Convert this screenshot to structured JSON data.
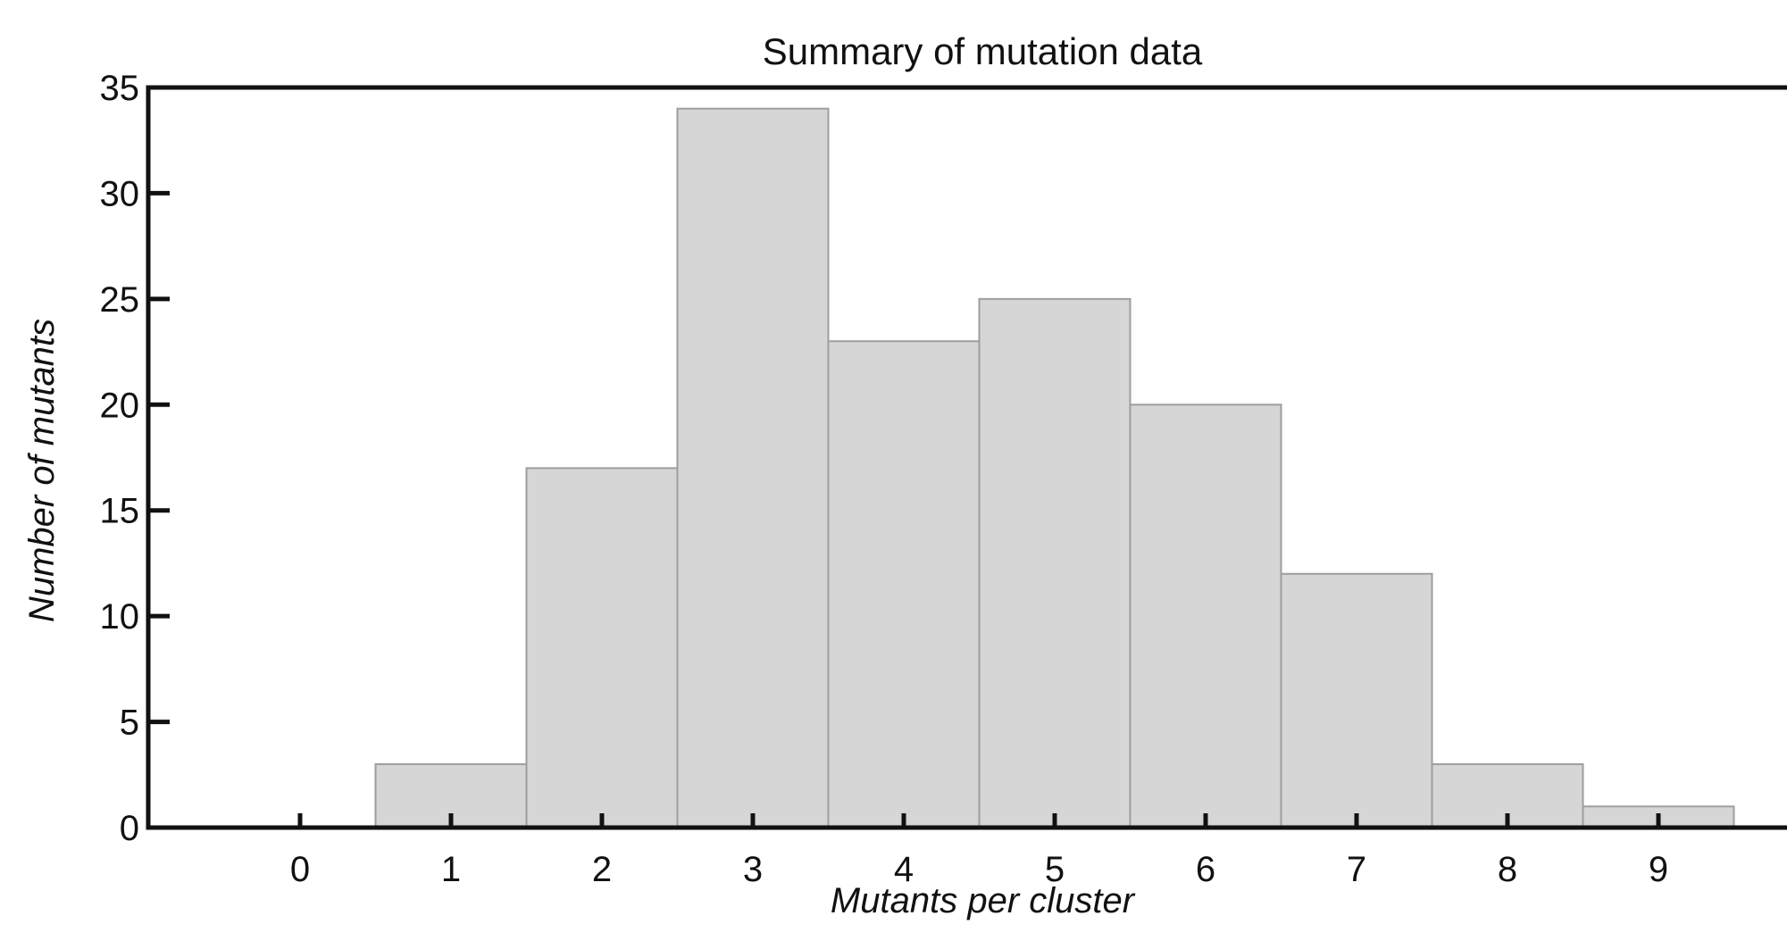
{
  "chart_data": {
    "type": "bar",
    "title": "Summary of mutation data",
    "xlabel": "Mutants per cluster",
    "ylabel": "Number of mutants",
    "categories": [
      "0",
      "1",
      "2",
      "3",
      "4",
      "5",
      "6",
      "7",
      "8",
      "9"
    ],
    "x": [
      0,
      1,
      2,
      3,
      4,
      5,
      6,
      7,
      8,
      9
    ],
    "values": [
      0,
      3,
      17,
      34,
      23,
      25,
      20,
      12,
      3,
      1
    ],
    "ylim": [
      0,
      35
    ],
    "yticks": [
      0,
      5,
      10,
      15,
      20,
      25,
      30,
      35
    ],
    "xlim": [
      -1,
      10
    ],
    "grid": false,
    "colors": {
      "bar_fill": "#d6d6d6",
      "bar_edge": "#9e9e9e",
      "axis": "#111111"
    }
  }
}
